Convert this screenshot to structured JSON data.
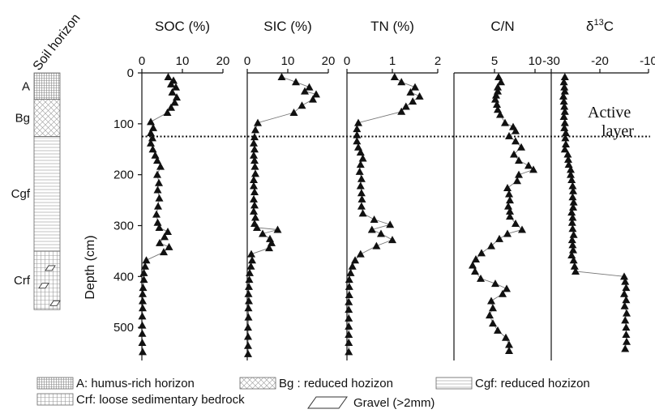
{
  "chart_data": {
    "type": "scatter",
    "y_axis": {
      "label": "Depth (cm)",
      "ticks": [
        0,
        100,
        200,
        300,
        400,
        500
      ],
      "range": [
        0,
        565
      ],
      "inverted": true
    },
    "active_layer": {
      "depth": 125,
      "label_line1": "Active",
      "label_line2": "layer"
    },
    "soil_column": {
      "title": "Soil horizon",
      "horizons": [
        {
          "label": "A",
          "top": 0,
          "bottom": 52,
          "pattern": "fine-grid"
        },
        {
          "label": "Bg",
          "top": 52,
          "bottom": 125,
          "pattern": "cross-hatch"
        },
        {
          "label": "Cgf",
          "top": 125,
          "bottom": 350,
          "pattern": "horizontal-lines"
        },
        {
          "label": "Crf",
          "top": 350,
          "bottom": 465,
          "pattern": "grid-gravel"
        }
      ]
    },
    "panels": [
      {
        "name": "SOC (%)",
        "title_prefix": "SOC (%)",
        "title_sup": "",
        "title_suffix": "",
        "ticks": [
          0,
          10,
          20
        ],
        "range": [
          0,
          20
        ],
        "points": [
          [
            6.5,
            8
          ],
          [
            7.8,
            15
          ],
          [
            7.2,
            22
          ],
          [
            8.4,
            28
          ],
          [
            7.5,
            38
          ],
          [
            8.6,
            48
          ],
          [
            8.1,
            58
          ],
          [
            7.2,
            68
          ],
          [
            6.3,
            78
          ],
          [
            2.2,
            96
          ],
          [
            2.8,
            108
          ],
          [
            2.2,
            118
          ],
          [
            2.6,
            128
          ],
          [
            2.2,
            138
          ],
          [
            2.7,
            150
          ],
          [
            3.3,
            162
          ],
          [
            3.8,
            172
          ],
          [
            4.6,
            184
          ],
          [
            3.8,
            200
          ],
          [
            4.2,
            216
          ],
          [
            3.9,
            230
          ],
          [
            4.3,
            246
          ],
          [
            4.0,
            262
          ],
          [
            3.6,
            278
          ],
          [
            3.9,
            294
          ],
          [
            4.3,
            304
          ],
          [
            6.4,
            312
          ],
          [
            5.6,
            322
          ],
          [
            4.4,
            334
          ],
          [
            6.7,
            342
          ],
          [
            5.4,
            352
          ],
          [
            1.1,
            368
          ],
          [
            0.8,
            380
          ],
          [
            0.5,
            393
          ],
          [
            0.5,
            406
          ],
          [
            0.3,
            422
          ],
          [
            0.2,
            434
          ],
          [
            0.2,
            448
          ],
          [
            0.2,
            462
          ],
          [
            0.1,
            478
          ],
          [
            0.1,
            496
          ],
          [
            0.1,
            512
          ],
          [
            0.1,
            530
          ],
          [
            0.2,
            548
          ]
        ]
      },
      {
        "name": "SIC (%)",
        "title_prefix": "SIC (%)",
        "title_sup": "",
        "title_suffix": "",
        "ticks": [
          0,
          10,
          20
        ],
        "range": [
          0,
          20
        ],
        "points": [
          [
            8.5,
            8
          ],
          [
            12.0,
            18
          ],
          [
            15.3,
            28
          ],
          [
            14.2,
            36
          ],
          [
            17.0,
            42
          ],
          [
            16.2,
            52
          ],
          [
            13.5,
            64
          ],
          [
            11.5,
            78
          ],
          [
            2.6,
            98
          ],
          [
            2.0,
            112
          ],
          [
            1.8,
            126
          ],
          [
            1.6,
            138
          ],
          [
            1.8,
            150
          ],
          [
            1.6,
            162
          ],
          [
            1.8,
            172
          ],
          [
            1.9,
            184
          ],
          [
            2.0,
            198
          ],
          [
            1.6,
            210
          ],
          [
            1.6,
            222
          ],
          [
            1.8,
            234
          ],
          [
            1.6,
            248
          ],
          [
            1.8,
            260
          ],
          [
            1.6,
            272
          ],
          [
            2.0,
            284
          ],
          [
            1.8,
            296
          ],
          [
            2.4,
            304
          ],
          [
            7.5,
            308
          ],
          [
            3.8,
            316
          ],
          [
            5.6,
            326
          ],
          [
            6.0,
            334
          ],
          [
            5.4,
            344
          ],
          [
            1.0,
            356
          ],
          [
            1.2,
            368
          ],
          [
            0.9,
            380
          ],
          [
            0.6,
            393
          ],
          [
            0.5,
            406
          ],
          [
            0.4,
            420
          ],
          [
            0.3,
            434
          ],
          [
            0.4,
            448
          ],
          [
            0.3,
            462
          ],
          [
            0.3,
            480
          ],
          [
            0.2,
            500
          ],
          [
            0.2,
            518
          ],
          [
            0.2,
            536
          ],
          [
            0.2,
            552
          ]
        ]
      },
      {
        "name": "TN (%)",
        "title_prefix": "TN (%)",
        "title_sup": "",
        "title_suffix": "",
        "ticks": [
          0,
          1,
          2
        ],
        "range": [
          0,
          2
        ],
        "points": [
          [
            1.05,
            8
          ],
          [
            1.2,
            18
          ],
          [
            1.5,
            28
          ],
          [
            1.4,
            38
          ],
          [
            1.6,
            46
          ],
          [
            1.45,
            56
          ],
          [
            1.3,
            66
          ],
          [
            1.2,
            76
          ],
          [
            0.25,
            98
          ],
          [
            0.22,
            110
          ],
          [
            0.22,
            122
          ],
          [
            0.22,
            134
          ],
          [
            0.25,
            146
          ],
          [
            0.3,
            156
          ],
          [
            0.35,
            168
          ],
          [
            0.3,
            180
          ],
          [
            0.28,
            194
          ],
          [
            0.32,
            208
          ],
          [
            0.3,
            222
          ],
          [
            0.32,
            236
          ],
          [
            0.33,
            248
          ],
          [
            0.32,
            262
          ],
          [
            0.35,
            276
          ],
          [
            0.6,
            288
          ],
          [
            0.95,
            298
          ],
          [
            0.55,
            308
          ],
          [
            0.75,
            316
          ],
          [
            1.0,
            328
          ],
          [
            0.65,
            340
          ],
          [
            0.3,
            356
          ],
          [
            0.18,
            368
          ],
          [
            0.12,
            380
          ],
          [
            0.08,
            393
          ],
          [
            0.05,
            406
          ],
          [
            0.05,
            420
          ],
          [
            0.05,
            436
          ],
          [
            0.04,
            450
          ],
          [
            0.04,
            465
          ],
          [
            0.04,
            482
          ],
          [
            0.04,
            498
          ],
          [
            0.04,
            514
          ],
          [
            0.04,
            530
          ],
          [
            0.04,
            548
          ]
        ]
      },
      {
        "name": "C/N",
        "title_prefix": "C/N",
        "title_sup": "",
        "title_suffix": "",
        "ticks": [
          5,
          10
        ],
        "range": [
          0,
          12
        ],
        "points": [
          [
            5.5,
            8
          ],
          [
            5.8,
            18
          ],
          [
            5.4,
            28
          ],
          [
            5.4,
            36
          ],
          [
            5.2,
            44
          ],
          [
            5.1,
            52
          ],
          [
            5.3,
            62
          ],
          [
            5.4,
            72
          ],
          [
            5.7,
            82
          ],
          [
            6.3,
            98
          ],
          [
            7.3,
            106
          ],
          [
            7.6,
            114
          ],
          [
            6.8,
            124
          ],
          [
            7.6,
            134
          ],
          [
            8.3,
            146
          ],
          [
            7.4,
            160
          ],
          [
            8.0,
            172
          ],
          [
            9.2,
            182
          ],
          [
            9.8,
            190
          ],
          [
            8.0,
            200
          ],
          [
            7.8,
            212
          ],
          [
            6.6,
            226
          ],
          [
            6.8,
            238
          ],
          [
            6.9,
            250
          ],
          [
            6.7,
            262
          ],
          [
            6.9,
            272
          ],
          [
            6.9,
            282
          ],
          [
            7.6,
            296
          ],
          [
            8.4,
            308
          ],
          [
            6.6,
            316
          ],
          [
            5.6,
            326
          ],
          [
            4.6,
            340
          ],
          [
            3.4,
            354
          ],
          [
            2.7,
            366
          ],
          [
            2.3,
            378
          ],
          [
            2.6,
            390
          ],
          [
            3.3,
            404
          ],
          [
            5.1,
            414
          ],
          [
            6.5,
            424
          ],
          [
            6.0,
            434
          ],
          [
            4.6,
            448
          ],
          [
            4.8,
            462
          ],
          [
            4.4,
            476
          ],
          [
            4.8,
            492
          ],
          [
            5.4,
            506
          ],
          [
            6.4,
            520
          ],
          [
            6.8,
            534
          ],
          [
            6.8,
            546
          ]
        ]
      },
      {
        "name": "δ13C",
        "title_prefix": "δ",
        "title_sup": "13",
        "title_suffix": "C",
        "ticks": [
          -30,
          -20,
          -10
        ],
        "range": [
          -30,
          -10
        ],
        "points": [
          [
            -27.2,
            8
          ],
          [
            -27.4,
            18
          ],
          [
            -27.3,
            28
          ],
          [
            -27.2,
            36
          ],
          [
            -27.5,
            46
          ],
          [
            -27.4,
            56
          ],
          [
            -27.3,
            66
          ],
          [
            -27.2,
            76
          ],
          [
            -27.4,
            86
          ],
          [
            -27.2,
            98
          ],
          [
            -27.3,
            108
          ],
          [
            -27.0,
            118
          ],
          [
            -27.1,
            128
          ],
          [
            -27.0,
            140
          ],
          [
            -27.2,
            150
          ],
          [
            -26.6,
            160
          ],
          [
            -26.5,
            170
          ],
          [
            -26.4,
            180
          ],
          [
            -26.0,
            190
          ],
          [
            -26.0,
            200
          ],
          [
            -25.8,
            210
          ],
          [
            -25.6,
            222
          ],
          [
            -25.5,
            232
          ],
          [
            -25.6,
            244
          ],
          [
            -25.4,
            254
          ],
          [
            -25.5,
            264
          ],
          [
            -25.8,
            274
          ],
          [
            -25.6,
            284
          ],
          [
            -25.7,
            294
          ],
          [
            -25.6,
            306
          ],
          [
            -25.4,
            318
          ],
          [
            -25.7,
            328
          ],
          [
            -25.6,
            338
          ],
          [
            -25.5,
            348
          ],
          [
            -25.8,
            358
          ],
          [
            -25.4,
            368
          ],
          [
            -25.2,
            380
          ],
          [
            -25.0,
            390
          ],
          [
            -15.0,
            400
          ],
          [
            -14.8,
            410
          ],
          [
            -14.6,
            422
          ],
          [
            -15.0,
            434
          ],
          [
            -14.6,
            446
          ],
          [
            -14.9,
            458
          ],
          [
            -14.5,
            472
          ],
          [
            -14.8,
            486
          ],
          [
            -14.6,
            500
          ],
          [
            -14.6,
            514
          ],
          [
            -14.5,
            528
          ],
          [
            -14.8,
            542
          ]
        ]
      }
    ],
    "legend": [
      {
        "label": "A: humus-rich horizon",
        "pattern": "fine-grid"
      },
      {
        "label": "Bg : reduced hozizon",
        "pattern": "cross-hatch"
      },
      {
        "label": "Cgf: reduced hozizon",
        "pattern": "horizontal-lines"
      },
      {
        "label": "Crf: loose sedimentary bedrock",
        "pattern": "grid"
      },
      {
        "label": "Gravel (>2mm)",
        "pattern": "parallelogram"
      }
    ]
  }
}
